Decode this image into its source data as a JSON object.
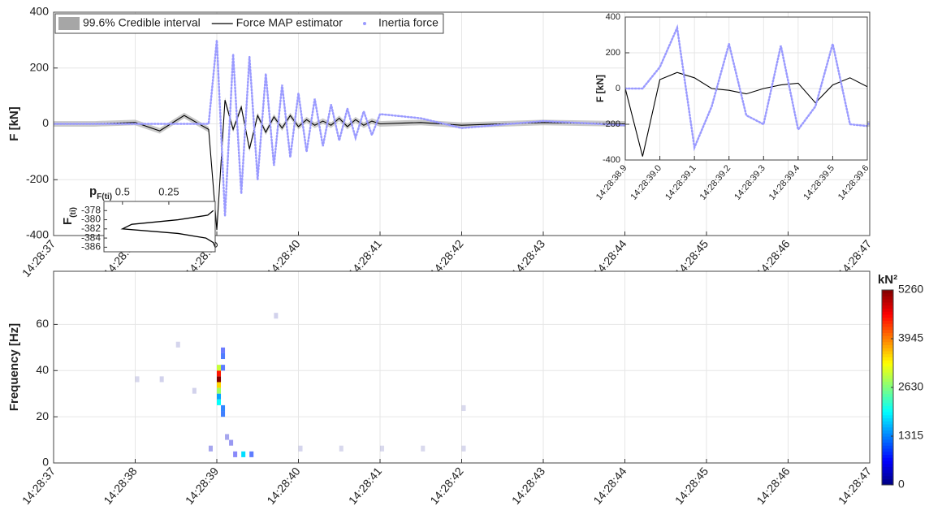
{
  "chart_data": [
    {
      "type": "line",
      "ylabel": "F [kN]",
      "x": [
        "14:28:37.0",
        "14:28:37.5",
        "14:28:38.0",
        "14:28:38.3",
        "14:28:38.6",
        "14:28:38.9",
        "14:28:39.0",
        "14:28:39.1",
        "14:28:39.2",
        "14:28:39.3",
        "14:28:39.4",
        "14:28:39.5",
        "14:28:39.6",
        "14:28:39.7",
        "14:28:39.8",
        "14:28:39.9",
        "14:28:40.0",
        "14:28:40.1",
        "14:28:40.2",
        "14:28:40.3",
        "14:28:40.4",
        "14:28:40.5",
        "14:28:40.6",
        "14:28:40.7",
        "14:28:40.8",
        "14:28:40.9",
        "14:28:41.0",
        "14:28:41.5",
        "14:28:42.0",
        "14:28:43.0",
        "14:28:44.0",
        "14:28:45.0",
        "14:28:46.0",
        "14:28:47.0"
      ],
      "xlim": [
        "14:28:37",
        "14:28:47"
      ],
      "xticks": [
        "14:28:37",
        "14:28:38",
        "14:28:39",
        "14:28:40",
        "14:28:41",
        "14:28:42",
        "14:28:43",
        "14:28:44",
        "14:28:45",
        "14:28:46",
        "14:28:47"
      ],
      "ylim": [
        -400,
        400
      ],
      "yticks": [
        -400,
        -200,
        0,
        200,
        400
      ],
      "grid": true,
      "legend": "upper left",
      "series": [
        {
          "name": "99.6% Credible interval",
          "color": "#a6a6a6",
          "style": "band",
          "upper": [
            10,
            10,
            15,
            -15,
            40,
            -10,
            -370,
            95,
            -10,
            70,
            -80,
            40,
            -20,
            35,
            -5,
            40,
            0,
            25,
            5,
            20,
            5,
            30,
            0,
            25,
            5,
            20,
            10,
            15,
            5,
            15,
            10,
            10,
            10,
            10
          ],
          "lower": [
            -10,
            -10,
            -5,
            -35,
            20,
            -30,
            -390,
            75,
            -30,
            50,
            -100,
            20,
            -40,
            15,
            -25,
            20,
            -20,
            5,
            -15,
            0,
            -15,
            10,
            -20,
            5,
            -15,
            0,
            -10,
            -5,
            -15,
            -5,
            -10,
            -10,
            -10,
            -10
          ]
        },
        {
          "name": "Force MAP estimator",
          "color": "#000000",
          "style": "solid",
          "values": [
            0,
            0,
            5,
            -25,
            30,
            -20,
            -380,
            85,
            -20,
            60,
            -90,
            30,
            -30,
            25,
            -15,
            30,
            -10,
            15,
            -5,
            10,
            -5,
            20,
            -10,
            15,
            -5,
            10,
            0,
            5,
            -5,
            5,
            0,
            0,
            0,
            0
          ]
        },
        {
          "name": "Inertia force",
          "color": "#9a9aff",
          "style": "dotted",
          "values": [
            0,
            0,
            0,
            0,
            0,
            0,
            300,
            -330,
            250,
            -250,
            240,
            -200,
            180,
            -150,
            140,
            -120,
            110,
            -100,
            90,
            -80,
            70,
            -60,
            55,
            -50,
            45,
            -40,
            35,
            20,
            -15,
            10,
            -5,
            0,
            0,
            0
          ]
        }
      ]
    },
    {
      "type": "line",
      "ylabel": "F [kN]",
      "x": [
        "14:28:38.90",
        "14:28:38.95",
        "14:28:39.00",
        "14:28:39.05",
        "14:28:39.10",
        "14:28:39.15",
        "14:28:39.20",
        "14:28:39.25",
        "14:28:39.30",
        "14:28:39.35",
        "14:28:39.40",
        "14:28:39.45",
        "14:28:39.50",
        "14:28:39.55",
        "14:28:39.60"
      ],
      "xlim": [
        "14:28:38.9",
        "14:28:39.6"
      ],
      "xticks": [
        "14:28:38.9",
        "14:28:39.0",
        "14:28:39.1",
        "14:28:39.2",
        "14:28:39.3",
        "14:28:39.4",
        "14:28:39.5",
        "14:28:39.6"
      ],
      "ylim": [
        -400,
        400
      ],
      "yticks": [
        -400,
        -200,
        0,
        200,
        400
      ],
      "grid": true,
      "series": [
        {
          "color": "#000000",
          "style": "solid",
          "values": [
            0,
            -380,
            50,
            90,
            60,
            0,
            -10,
            -30,
            0,
            20,
            30,
            -80,
            20,
            60,
            10
          ]
        },
        {
          "color": "#9a9aff",
          "style": "dotted",
          "values": [
            0,
            0,
            120,
            340,
            -330,
            -100,
            250,
            -150,
            -200,
            240,
            -230,
            -100,
            250,
            -200,
            -210
          ]
        }
      ]
    },
    {
      "type": "density",
      "xlabel": "p",
      "xlabel_subscript": "F(ti)",
      "ylabel": "F",
      "ylabel_subscript": "(ti)",
      "y": [
        -386,
        -385,
        -384,
        -383,
        -382,
        -381,
        -380,
        -379,
        -378
      ],
      "values": [
        0,
        0.01,
        0.05,
        0.2,
        0.5,
        0.45,
        0.2,
        0.04,
        0.01
      ],
      "xlim": [
        0.6,
        0
      ],
      "xticks": [
        0.5,
        0.25
      ],
      "ylim": [
        -387,
        -376
      ],
      "yticks": [
        -386,
        -384,
        -382,
        -380,
        -378
      ],
      "color": "#000000"
    },
    {
      "type": "heatmap",
      "ylabel": "Frequency [Hz]",
      "colorbar_label": "kN²",
      "colormap": "jet",
      "x": [
        "14:28:39.00",
        "14:28:39.00",
        "14:28:39.00",
        "14:28:39.00",
        "14:28:39.00",
        "14:28:39.00",
        "14:28:39.00",
        "14:28:39.05",
        "14:28:39.05",
        "14:28:39.05",
        "14:28:39.05",
        "14:28:39.05",
        "14:28:39.20",
        "14:28:39.30",
        "14:28:39.40",
        "14:28:38.90",
        "14:28:38.30",
        "14:28:38.50",
        "14:28:38.70",
        "14:28:39.70",
        "14:28:38.00",
        "14:28:40.00",
        "14:28:40.50",
        "14:28:41.00",
        "14:28:41.50",
        "14:28:42.00",
        "14:28:42.00",
        "14:28:39.15",
        "14:28:39.10"
      ],
      "y": [
        35,
        37.5,
        32.5,
        30,
        27.5,
        25,
        40,
        40,
        45,
        47.5,
        22.5,
        20,
        2.5,
        2.5,
        2.5,
        5,
        35,
        50,
        30,
        62.5,
        35,
        5,
        5,
        5,
        5,
        5,
        22.5,
        7.5,
        10
      ],
      "values": [
        5260,
        4500,
        3500,
        2800,
        1500,
        2000,
        3000,
        900,
        1000,
        800,
        1200,
        1100,
        600,
        1800,
        900,
        400,
        100,
        80,
        100,
        100,
        60,
        80,
        60,
        50,
        50,
        60,
        50,
        500,
        400
      ],
      "xlim": [
        "14:28:37",
        "14:28:47"
      ],
      "xticks": [
        "14:28:37",
        "14:28:38",
        "14:28:39",
        "14:28:40",
        "14:28:41",
        "14:28:42",
        "14:28:43",
        "14:28:44",
        "14:28:45",
        "14:28:46",
        "14:28:47"
      ],
      "ylim": [
        0,
        83
      ],
      "yticks": [
        0,
        20,
        40,
        60
      ],
      "grid": true,
      "clim": [
        0,
        5260
      ],
      "cticks": [
        0,
        1315,
        2630,
        3945,
        5260
      ]
    }
  ]
}
